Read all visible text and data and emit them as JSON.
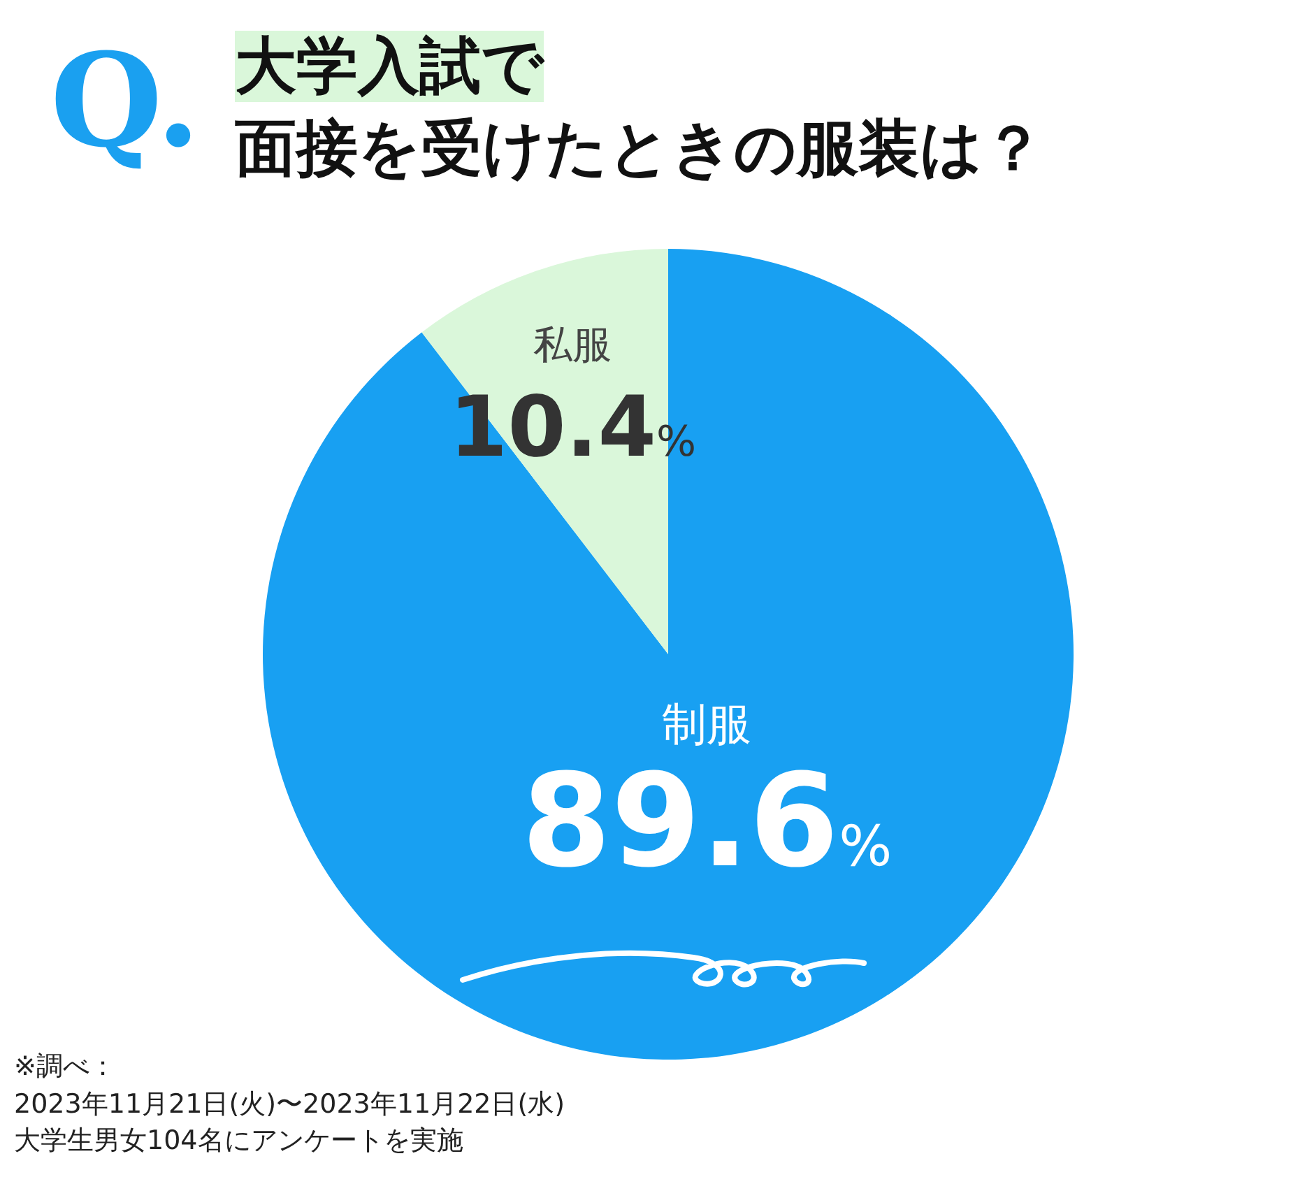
{
  "chart_data": {
    "type": "pie",
    "title": "大学入試で",
    "subtitle": "面接を受けたときの服装は？",
    "categories": [
      "制服",
      "私服"
    ],
    "values": [
      89.6,
      10.4
    ],
    "colors": [
      "#18a0f2",
      "#daf7da"
    ],
    "value_labels": [
      "89.6%",
      "10.4%"
    ],
    "legend": false,
    "annotations": [
      "Q.",
      "※調べ：\n2023年11月21日(火)〜2023年11月22日(水)\n大学生男女104名にアンケートを実施"
    ]
  }
}
